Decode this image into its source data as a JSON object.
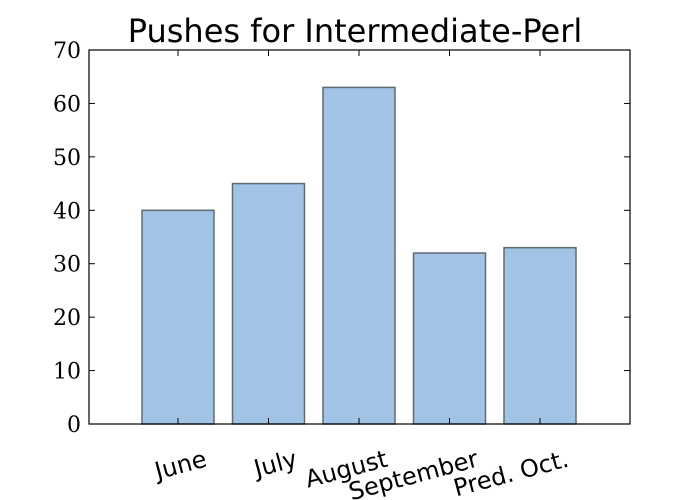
{
  "chart_data": {
    "type": "bar",
    "title": "Pushes for Intermediate-Perl",
    "xlabel": "",
    "ylabel": "",
    "categories": [
      "June",
      "July",
      "August",
      "September",
      "Pred. Oct."
    ],
    "values": [
      40,
      45,
      63,
      32,
      33
    ],
    "ylim": [
      0,
      70
    ],
    "yticks": [
      0,
      10,
      20,
      30,
      40,
      50,
      60,
      70
    ],
    "grid": false,
    "legend": "none",
    "bar_color": "#a1c4e6",
    "bar_edge_color": "#5f6b73"
  }
}
